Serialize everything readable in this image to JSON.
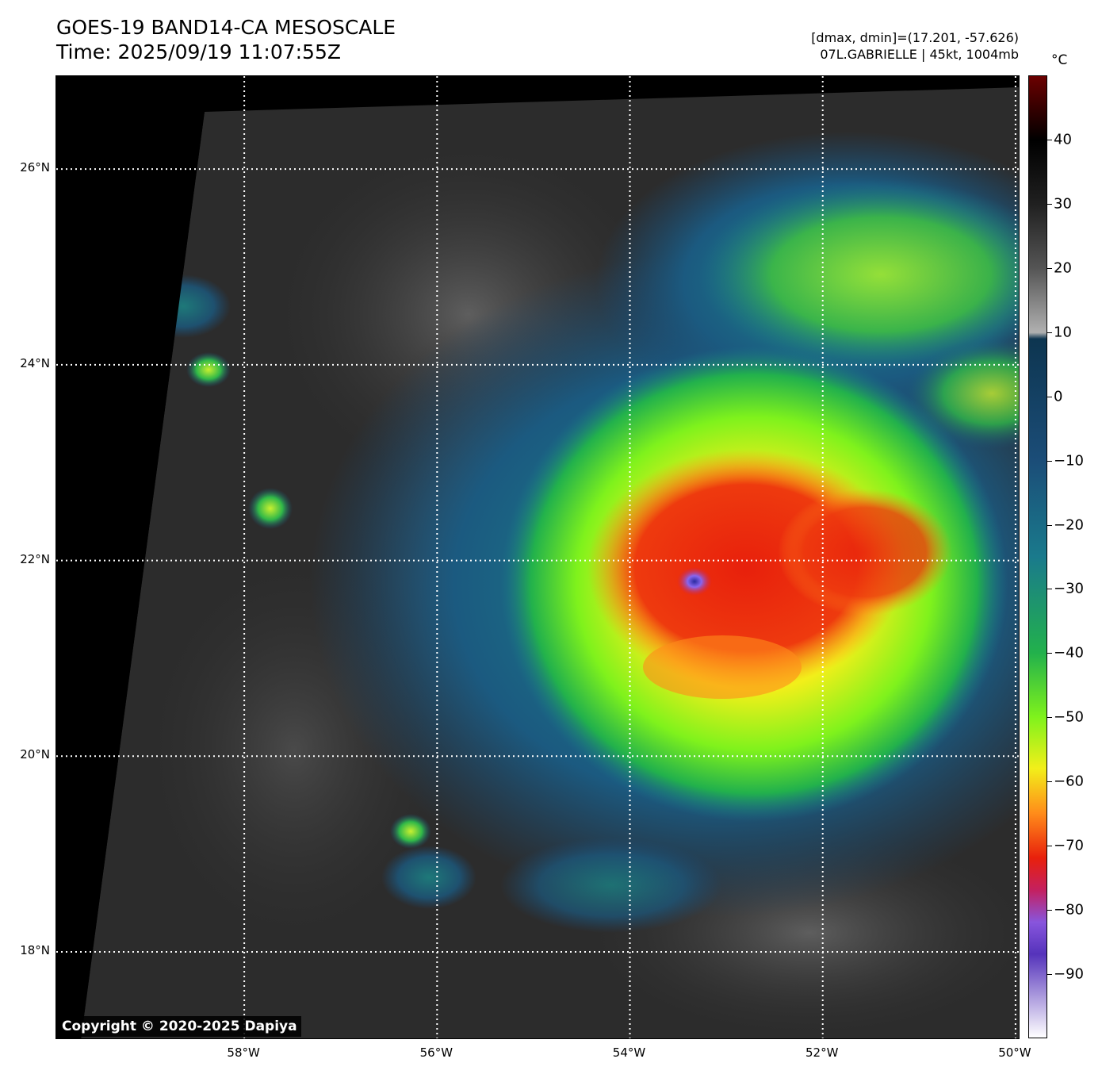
{
  "title": {
    "line1": "GOES-19 BAND14-CA MESOSCALE",
    "line2": "Time: 2025/09/19 11:07:55Z"
  },
  "info": {
    "range": "[dmax, dmin]=(17.201, -57.626)",
    "storm": "07L.GABRIELLE | 45kt, 1004mb"
  },
  "map": {
    "lon_range": [
      -59.95,
      -49.95
    ],
    "lat_range": [
      17.1,
      26.95
    ],
    "lat_ticks": [
      {
        "value": 26,
        "label": "26°N"
      },
      {
        "value": 24,
        "label": "24°N"
      },
      {
        "value": 22,
        "label": "22°N"
      },
      {
        "value": 20,
        "label": "20°N"
      },
      {
        "value": 18,
        "label": "18°N"
      }
    ],
    "lon_ticks": [
      {
        "value": -58,
        "label": "58°W"
      },
      {
        "value": -56,
        "label": "56°W"
      },
      {
        "value": -54,
        "label": "54°W"
      },
      {
        "value": -52,
        "label": "52°W"
      },
      {
        "value": -50,
        "label": "50°W"
      }
    ],
    "storm_center": {
      "lon": -53.4,
      "lat": 21.8
    },
    "grid_color": "#ffffff"
  },
  "colorbar": {
    "unit": "°C",
    "range": [
      -100,
      50
    ],
    "ticks": [
      {
        "value": 40,
        "label": "40"
      },
      {
        "value": 30,
        "label": "30"
      },
      {
        "value": 20,
        "label": "20"
      },
      {
        "value": 10,
        "label": "10"
      },
      {
        "value": 0,
        "label": "0"
      },
      {
        "value": -10,
        "label": "−10"
      },
      {
        "value": -20,
        "label": "−20"
      },
      {
        "value": -30,
        "label": "−30"
      },
      {
        "value": -40,
        "label": "−40"
      },
      {
        "value": -50,
        "label": "−50"
      },
      {
        "value": -60,
        "label": "−60"
      },
      {
        "value": -70,
        "label": "−70"
      },
      {
        "value": -80,
        "label": "−80"
      },
      {
        "value": -90,
        "label": "−90"
      }
    ],
    "stops": [
      {
        "value": 50,
        "color": "#6b0000"
      },
      {
        "value": 40,
        "color": "#000000"
      },
      {
        "value": 30,
        "color": "#202020"
      },
      {
        "value": 20,
        "color": "#555555"
      },
      {
        "value": 10,
        "color": "#b0b0b0"
      },
      {
        "value": 9,
        "color": "#0d3550"
      },
      {
        "value": -10,
        "color": "#1b4d78"
      },
      {
        "value": -25,
        "color": "#1a7a8c"
      },
      {
        "value": -40,
        "color": "#22b14c"
      },
      {
        "value": -50,
        "color": "#7ff21c"
      },
      {
        "value": -58,
        "color": "#f2ef1a"
      },
      {
        "value": -65,
        "color": "#ff8c1a"
      },
      {
        "value": -72,
        "color": "#e8200c"
      },
      {
        "value": -77,
        "color": "#c42060"
      },
      {
        "value": -82,
        "color": "#8855dd"
      },
      {
        "value": -87,
        "color": "#5533bb"
      },
      {
        "value": -100,
        "color": "#ffffff"
      }
    ]
  },
  "copyright": "Copyright © 2020-2025 Dapiya"
}
